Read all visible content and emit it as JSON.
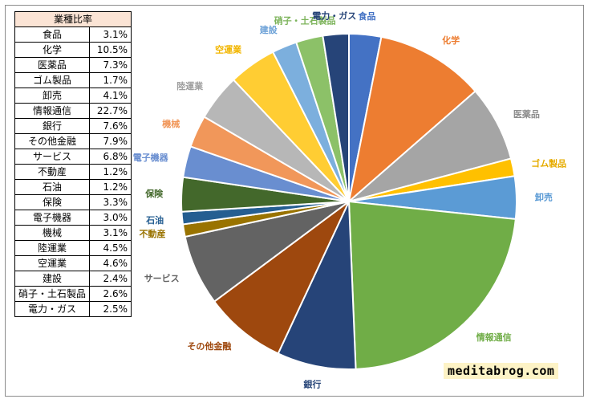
{
  "table": {
    "header": "業種比率"
  },
  "chart_data": {
    "type": "pie",
    "title": "",
    "categories": [
      "食品",
      "化学",
      "医薬品",
      "ゴム製品",
      "卸売",
      "情報通信",
      "銀行",
      "その他金融",
      "サービス",
      "不動産",
      "石油",
      "保険",
      "電子機器",
      "機械",
      "陸運業",
      "空運業",
      "建設",
      "硝子・土石製品",
      "電力・ガス"
    ],
    "values": [
      3.1,
      10.5,
      7.3,
      1.7,
      4.1,
      22.7,
      7.6,
      7.9,
      6.8,
      1.2,
      1.2,
      3.3,
      3.0,
      3.1,
      4.5,
      4.6,
      2.4,
      2.6,
      2.5
    ],
    "value_labels": [
      "3.1%",
      "10.5%",
      "7.3%",
      "1.7%",
      "4.1%",
      "22.7%",
      "7.6%",
      "7.9%",
      "6.8%",
      "1.2%",
      "1.2%",
      "3.3%",
      "3.0%",
      "3.1%",
      "4.5%",
      "4.6%",
      "2.4%",
      "2.6%",
      "2.5%"
    ],
    "colors": [
      "#4472C4",
      "#ED7D31",
      "#A5A5A5",
      "#FFC000",
      "#5B9BD5",
      "#70AD47",
      "#264478",
      "#9E480E",
      "#636363",
      "#997300",
      "#255E91",
      "#43682B",
      "#698ED0",
      "#F1975A",
      "#B7B7B7",
      "#FFCD33",
      "#7CAFDD",
      "#8CC168",
      "#264478"
    ],
    "label_colors": [
      "#4472C4",
      "#ED7D31",
      "#8C8C8C",
      "#E6AC00",
      "#5B9BD5",
      "#70AD47",
      "#264478",
      "#9E480E",
      "#636363",
      "#997300",
      "#255E91",
      "#43682B",
      "#698ED0",
      "#F1975A",
      "#A0A0A0",
      "#F2B600",
      "#6FA3D8",
      "#7CB35A",
      "#264478"
    ],
    "legend": "none"
  },
  "watermark": "meditabrog.com"
}
